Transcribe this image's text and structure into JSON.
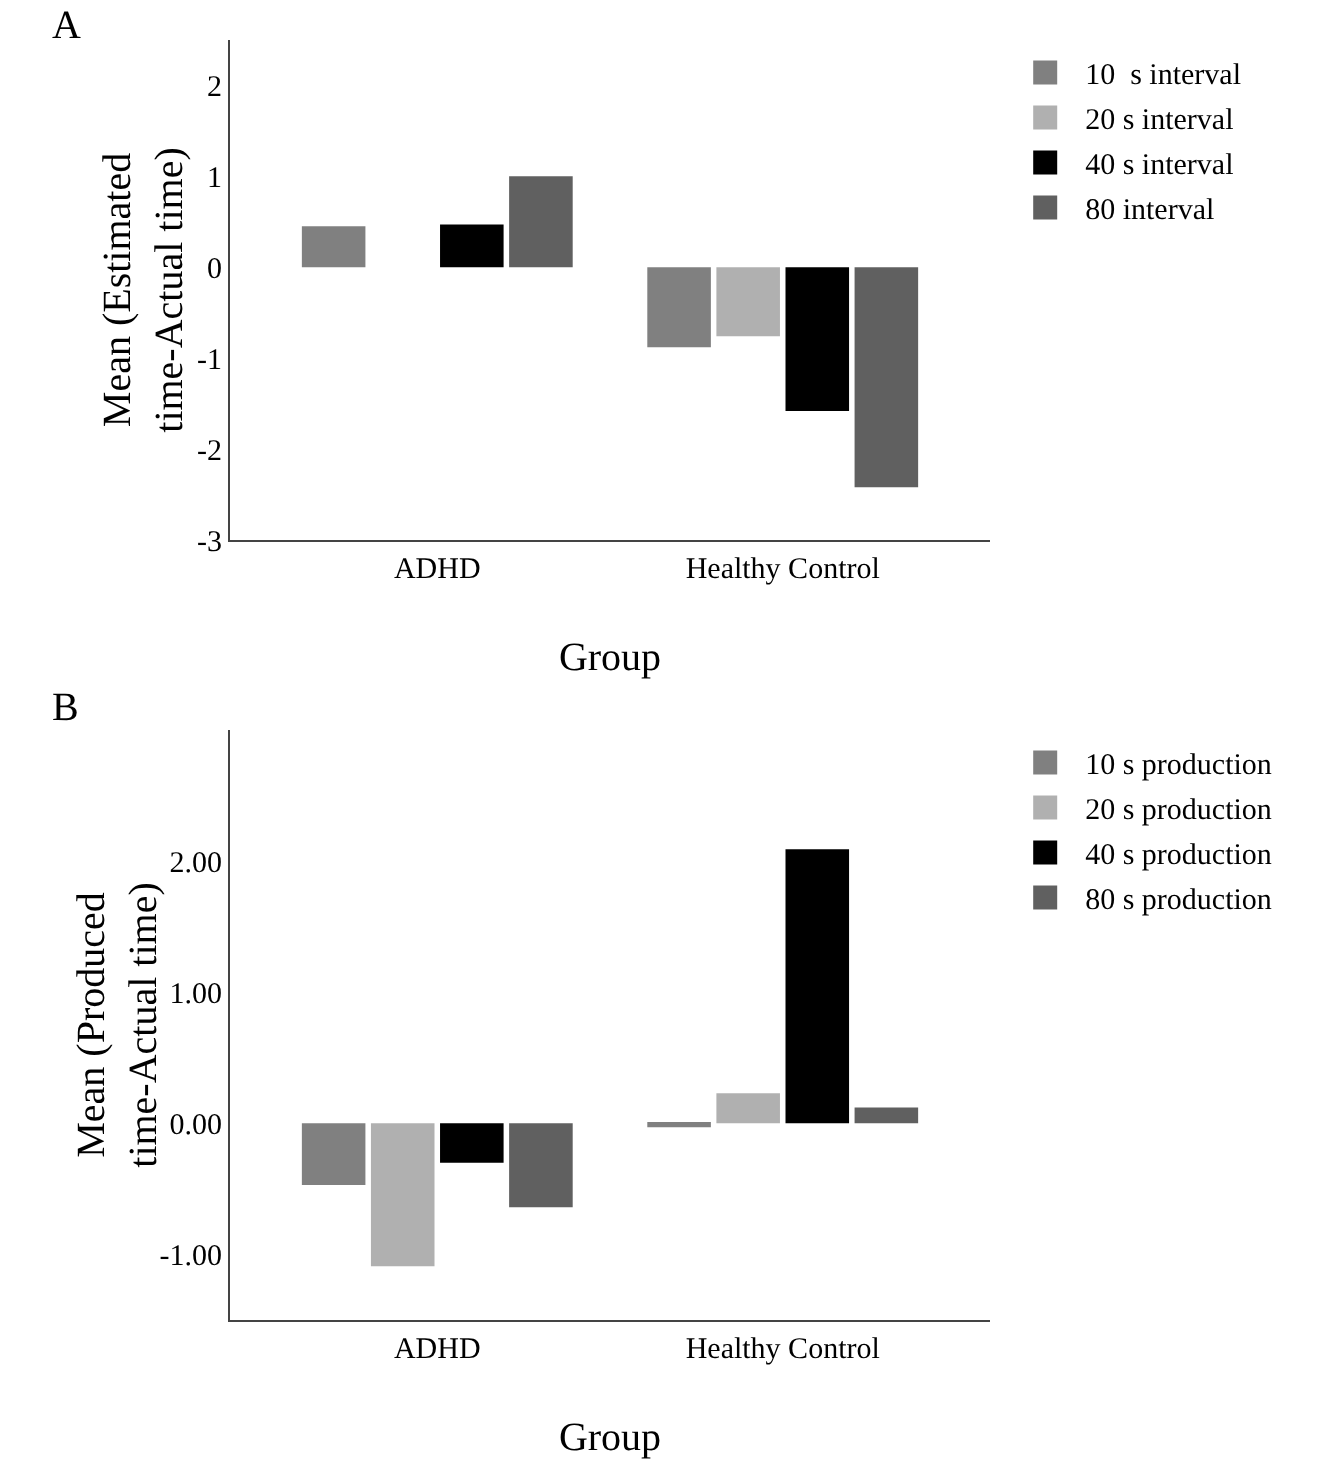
{
  "chart_data": [
    {
      "type": "bar",
      "categories": [
        "ADHD",
        "Healthy Control"
      ],
      "xlabel": "Group",
      "ylabel": "Mean (Estimated time-Actual time)",
      "annotations": [
        "A"
      ],
      "series": [
        {
          "name": "10  s interval",
          "color": "#808080",
          "values": [
            0.45,
            -0.88
          ]
        },
        {
          "name": "20 s interval",
          "color": "#b0b0b0",
          "values": [
            0.0,
            -0.76
          ]
        },
        {
          "name": "40 s interval",
          "color": "#000000",
          "values": [
            0.47,
            -1.58
          ]
        },
        {
          "name": "80 interval",
          "color": "#606060",
          "values": [
            1.0,
            -2.42
          ]
        }
      ],
      "ylim": [
        -3,
        2.5
      ],
      "yticks": [
        -3,
        -2,
        -1,
        0,
        1,
        2
      ],
      "grid": false,
      "legend": "top right"
    },
    {
      "type": "bar",
      "categories": [
        "ADHD",
        "Healthy Control"
      ],
      "xlabel": "Group",
      "ylabel": "Mean (Produced time-Actual time)",
      "annotations": [
        "B"
      ],
      "series": [
        {
          "name": "10 s production",
          "color": "#808080",
          "values": [
            -0.47,
            -0.03
          ]
        },
        {
          "name": "20 s production",
          "color": "#b0b0b0",
          "values": [
            -1.09,
            0.23
          ]
        },
        {
          "name": "40 s production",
          "color": "#000000",
          "values": [
            -0.3,
            2.09
          ]
        },
        {
          "name": "80 s production",
          "color": "#606060",
          "values": [
            -0.64,
            0.12
          ]
        }
      ],
      "ylim": [
        -1.5,
        3
      ],
      "yticks": [
        {
          "value": -1,
          "label": "-1.00"
        },
        {
          "value": 0,
          "label": "0.00"
        },
        {
          "value": 1,
          "label": "1.00"
        },
        {
          "value": 2,
          "label": "2.00"
        }
      ],
      "grid": false,
      "legend": "top right"
    }
  ]
}
